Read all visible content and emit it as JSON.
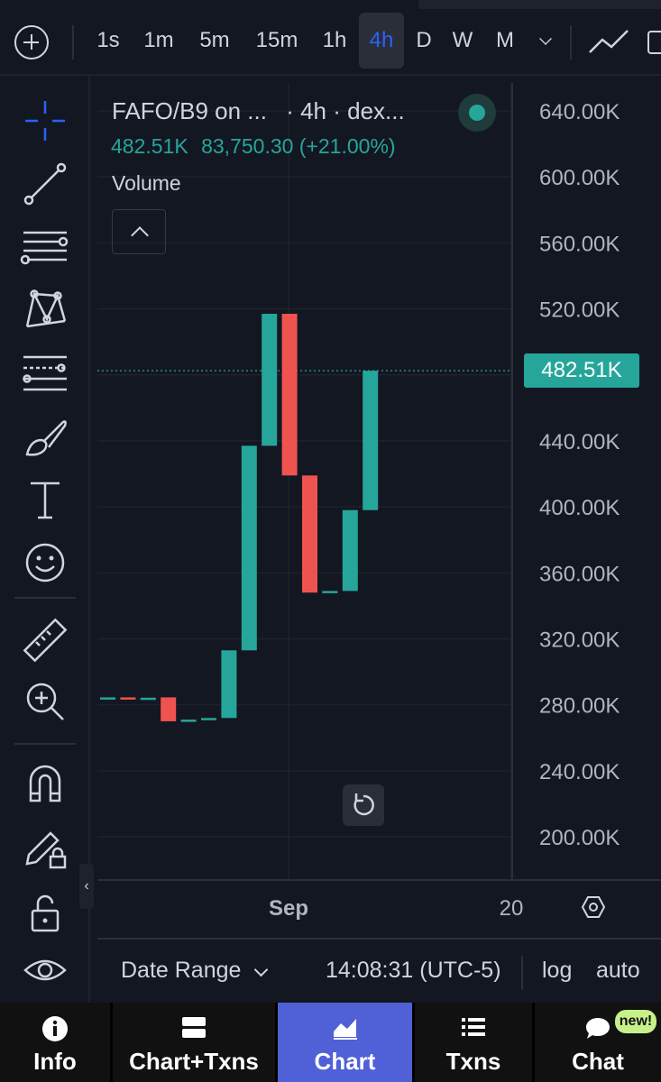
{
  "toolbar": {
    "timeframes": [
      "1s",
      "1m",
      "5m",
      "15m",
      "1h",
      "4h",
      "D",
      "W",
      "M"
    ],
    "active_timeframe": "4h"
  },
  "legend": {
    "symbol": "FAFO/B9 on ...",
    "interval_exchange": "· 4h · dex...",
    "last": "482.51K",
    "change": "83,750.30 (+21.00%)",
    "volume_label": "Volume"
  },
  "price_badge": "482.51K",
  "colors": {
    "up": "#26a69a",
    "down": "#ef5350",
    "accent": "#2962ff",
    "nav_active": "#5060d6"
  },
  "chart_data": {
    "type": "candlestick",
    "title": "",
    "ylim": [
      190000,
      650000
    ],
    "y_ticks": [
      "640.00K",
      "600.00K",
      "560.00K",
      "520.00K",
      "480.00K",
      "440.00K",
      "400.00K",
      "360.00K",
      "320.00K",
      "280.00K",
      "240.00K",
      "200.00K"
    ],
    "x_ticks": [
      "Sep",
      "20"
    ],
    "candles": [
      {
        "open": 284000,
        "close": 284500
      },
      {
        "open": 284500,
        "close": 283500
      },
      {
        "open": 284000,
        "close": 284300
      },
      {
        "open": 284500,
        "close": 270000
      },
      {
        "open": 270000,
        "close": 271000
      },
      {
        "open": 271000,
        "close": 272000
      },
      {
        "open": 272000,
        "close": 313000
      },
      {
        "open": 313000,
        "close": 437000
      },
      {
        "open": 437000,
        "close": 517000
      },
      {
        "open": 517000,
        "close": 419000
      },
      {
        "open": 419000,
        "close": 348000
      },
      {
        "open": 348000,
        "close": 349000
      },
      {
        "open": 349000,
        "close": 398000
      },
      {
        "open": 398000,
        "close": 482510
      }
    ],
    "last_price": 482510
  },
  "statusbar": {
    "date_range": "Date Range",
    "time": "14:08:31 (UTC-5)",
    "log": "log",
    "auto": "auto"
  },
  "nav": [
    {
      "label": "Info"
    },
    {
      "label": "Chart+Txns"
    },
    {
      "label": "Chart"
    },
    {
      "label": "Txns"
    },
    {
      "label": "Chat"
    }
  ],
  "nav_badge": "new!"
}
